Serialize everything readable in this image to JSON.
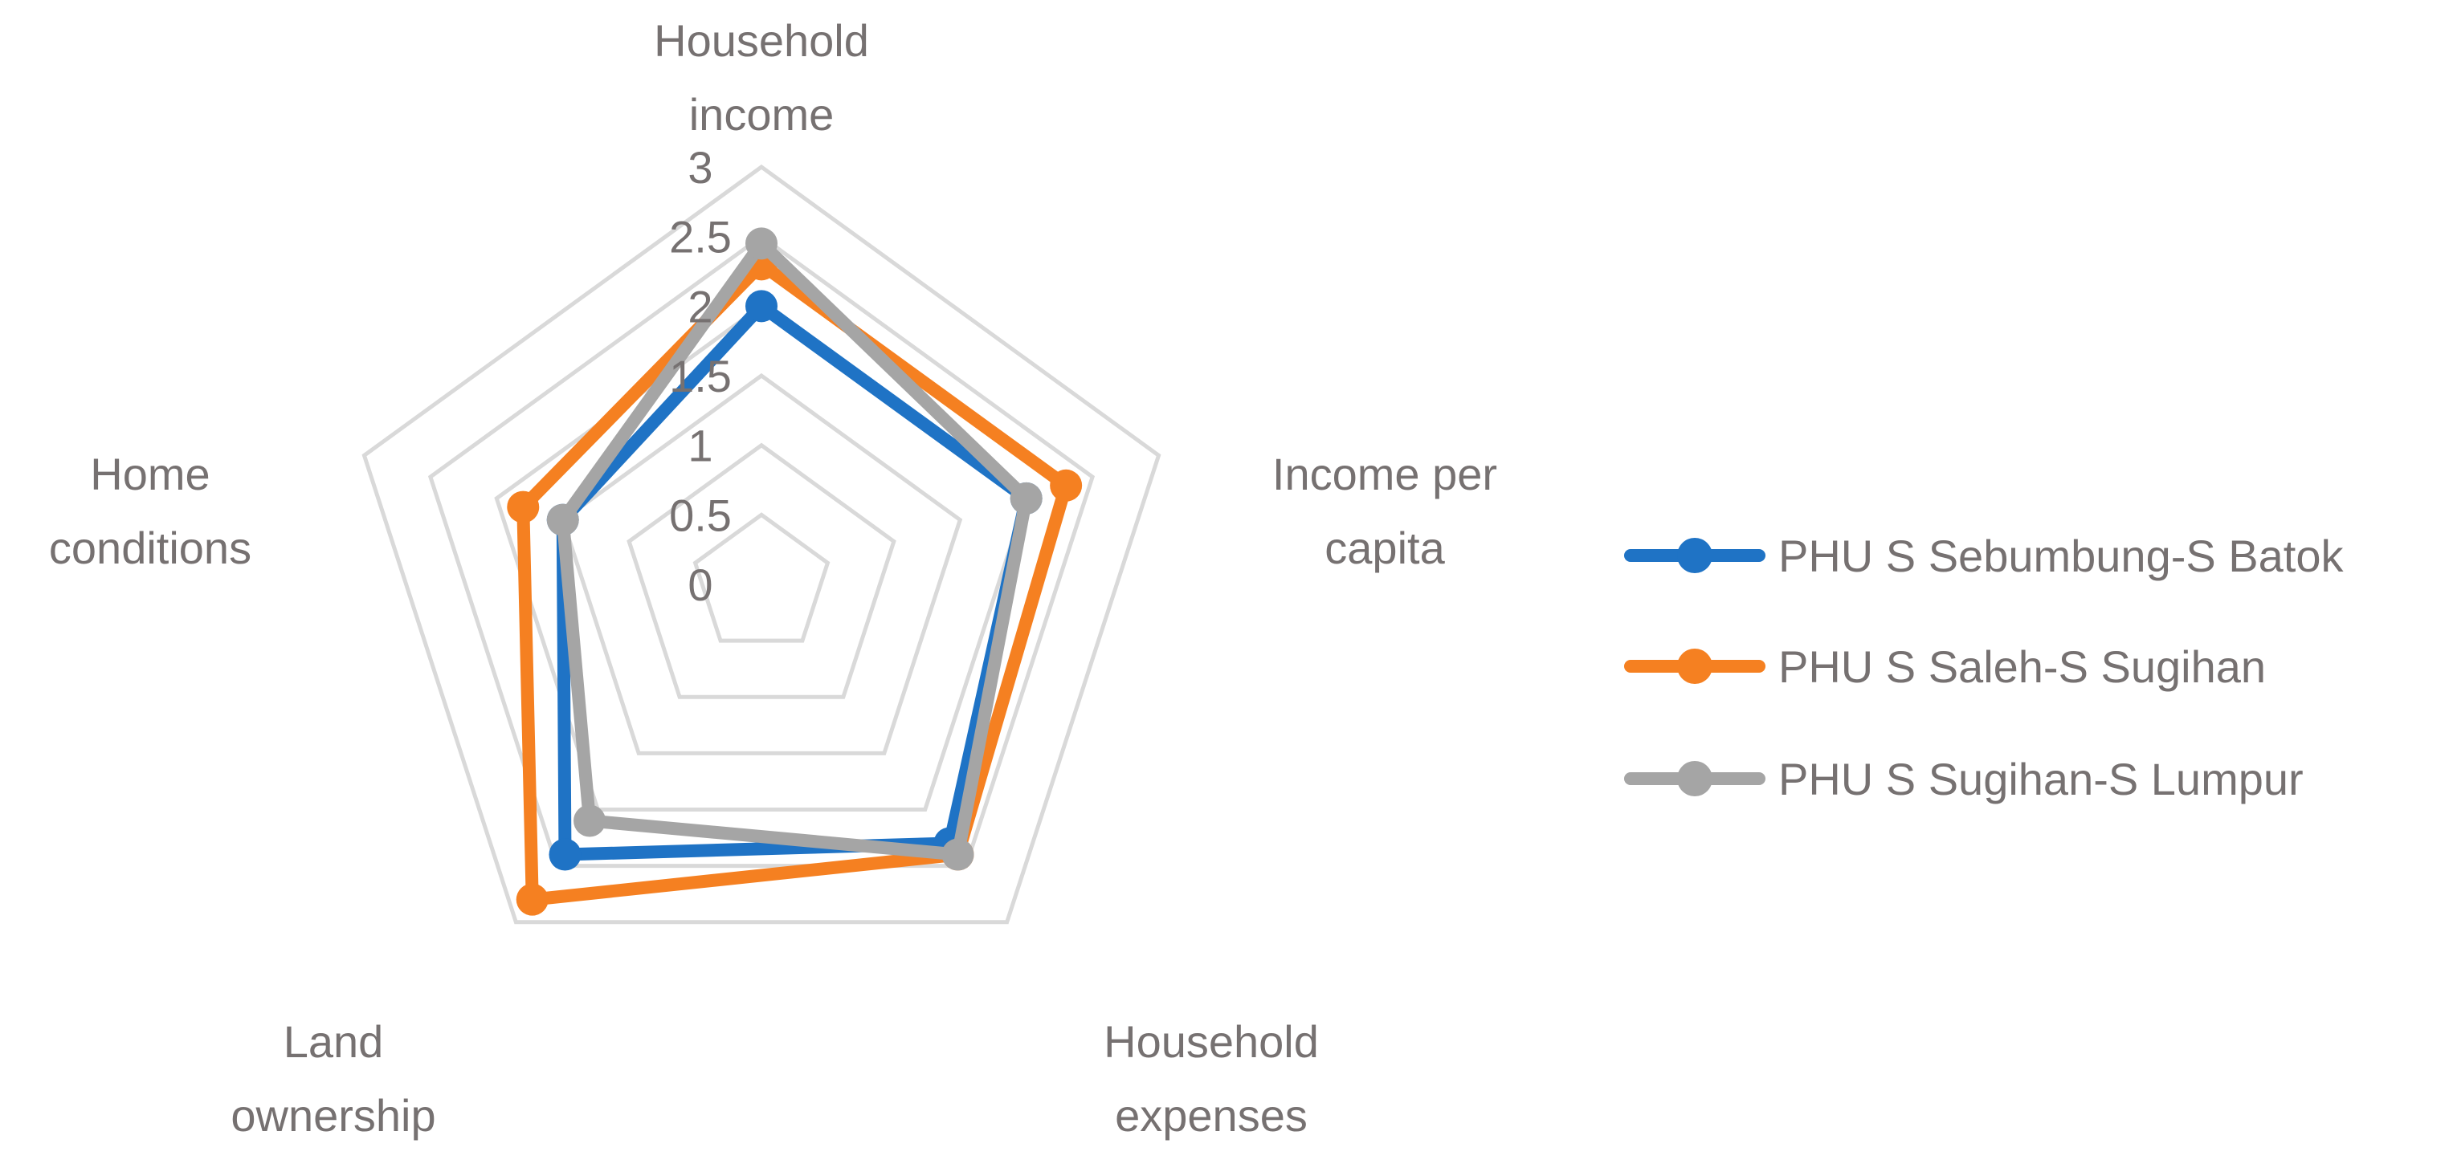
{
  "chart_data": {
    "type": "radar",
    "title": "",
    "axes": [
      {
        "name": "Household income",
        "lines": [
          "Household",
          "income"
        ]
      },
      {
        "name": "Income per capita",
        "lines": [
          "Income per",
          "capita"
        ]
      },
      {
        "name": "Household expenses",
        "lines": [
          "Household",
          "expenses"
        ]
      },
      {
        "name": "Land ownership",
        "lines": [
          "Land",
          "ownership"
        ]
      },
      {
        "name": "Home conditions",
        "lines": [
          "Home",
          "conditions"
        ]
      }
    ],
    "scale": {
      "min": 0,
      "max": 3,
      "step": 0.5,
      "ticks": [
        "0",
        "0.5",
        "1",
        "1.5",
        "2",
        "2.5",
        "3"
      ]
    },
    "series": [
      {
        "name": "PHU S Sebumbung-S Batok",
        "color": "#1F73C5",
        "values": [
          2.0,
          2.0,
          2.3,
          2.4,
          1.5
        ]
      },
      {
        "name": "PHU S Saleh-S Sugihan",
        "color": "#F58021",
        "values": [
          2.3,
          2.3,
          2.4,
          2.8,
          1.8
        ]
      },
      {
        "name": "PHU S Sugihan-S Lumpur",
        "color": "#A5A5A5",
        "values": [
          2.45,
          2.0,
          2.4,
          2.1,
          1.5
        ]
      }
    ],
    "grid": true,
    "grid_color": "#D9D9D9",
    "legend_position": "right"
  }
}
